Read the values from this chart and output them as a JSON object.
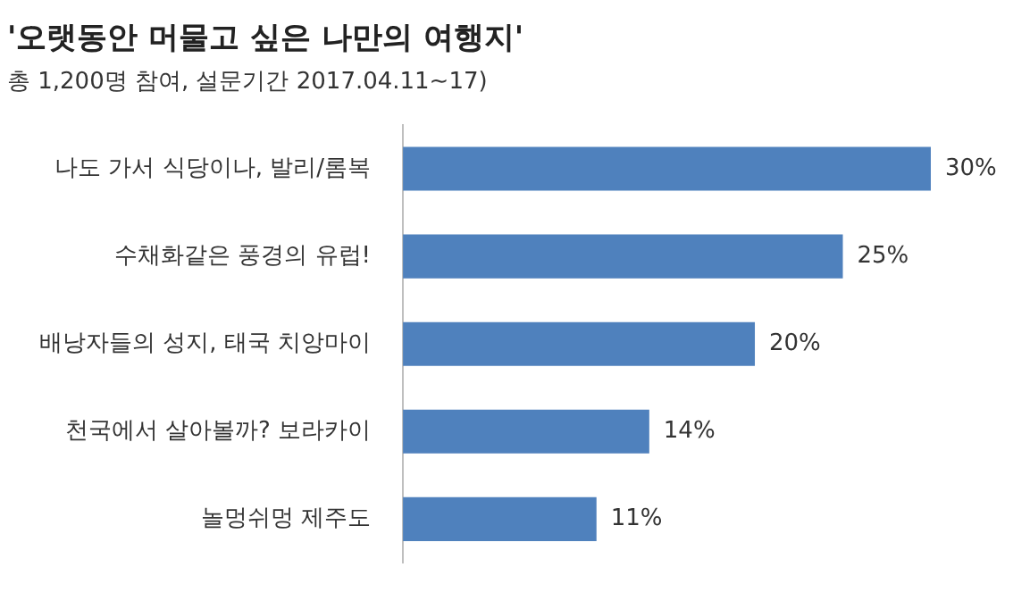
{
  "chart_data": {
    "type": "bar",
    "orientation": "horizontal",
    "title": "'오랫동안 머물고 싶은 나만의 여행지'",
    "subtitle": "총 1,200명 참여, 설문기간 2017.04.11~17)",
    "categories": [
      "나도 가서 식당이나, 발리/롬복",
      "수채화같은 풍경의 유럽!",
      "배낭자들의 성지, 태국 치앙마이",
      "천국에서 살아볼까? 보라카이",
      "놀멍쉬멍 제주도"
    ],
    "values": [
      30,
      25,
      20,
      14,
      11
    ],
    "color": "#4f81bd",
    "xlim": [
      0,
      30
    ],
    "value_labels": [
      "30%",
      "25%",
      "20%",
      "14%",
      "11%"
    ],
    "legend": false,
    "tick_labels": "y"
  }
}
